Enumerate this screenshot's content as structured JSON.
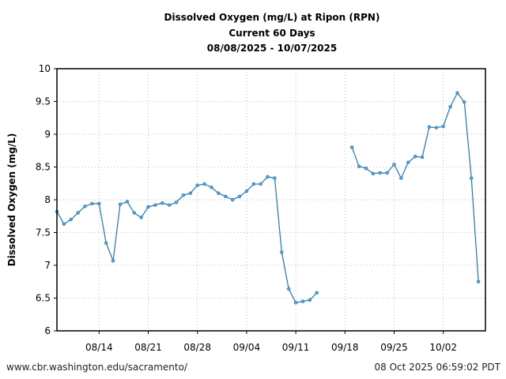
{
  "chart_data": {
    "type": "line",
    "title": [
      "Dissolved Oxygen (mg/L) at Ripon (RPN)",
      "Current 60 Days",
      "08/08/2025 - 10/07/2025"
    ],
    "xlabel": "",
    "ylabel": "Dissolved Oxygen (mg/L)",
    "ylim": [
      6,
      10
    ],
    "yticks": [
      "6",
      "6.5",
      "7",
      "7.5",
      "8",
      "8.5",
      "9",
      "9.5",
      "10"
    ],
    "xticks": [
      "08/14",
      "08/21",
      "08/28",
      "09/04",
      "09/11",
      "09/18",
      "09/25",
      "10/02"
    ],
    "xrange_days": [
      0,
      61
    ],
    "xtick_days": [
      6,
      13,
      20,
      27,
      34,
      41,
      48,
      55
    ],
    "grid": true,
    "color": "#1f77b4",
    "series": [
      {
        "name": "DO",
        "start_date": "08/08/2025",
        "values": [
          7.82,
          7.63,
          7.7,
          7.8,
          7.9,
          7.94,
          7.94,
          7.34,
          7.07,
          7.93,
          7.97,
          7.8,
          7.73,
          7.89,
          7.92,
          7.95,
          7.92,
          7.96,
          8.07,
          8.1,
          8.22,
          8.24,
          8.19,
          8.1,
          8.05,
          8.0,
          8.05,
          8.13,
          8.24,
          8.24,
          8.35,
          8.33,
          7.2,
          6.64,
          6.43,
          6.45,
          6.47,
          6.58,
          null,
          null,
          null,
          null,
          8.8,
          8.51,
          8.48,
          8.4,
          8.41,
          8.41,
          8.54,
          8.33,
          8.57,
          8.66,
          8.65,
          9.11,
          9.1,
          9.12,
          9.42,
          9.63,
          9.49,
          8.33,
          6.75
        ]
      }
    ]
  },
  "footer": {
    "url": "www.cbr.washington.edu/sacramento/",
    "timestamp": "08 Oct 2025 06:59:02 PDT"
  }
}
